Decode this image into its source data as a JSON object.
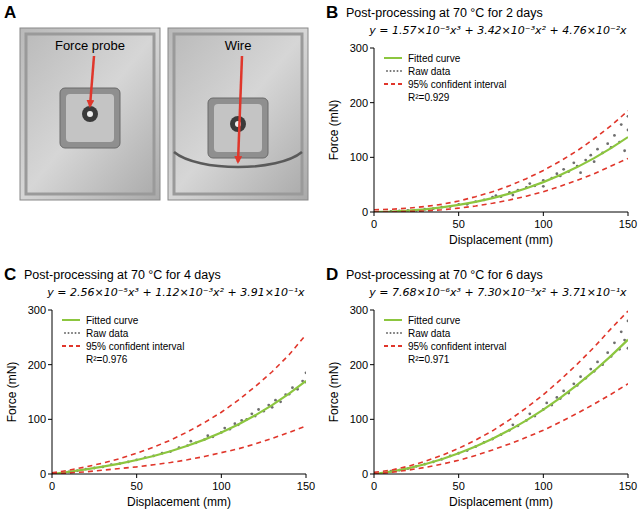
{
  "photo_panel": {
    "letter": "A",
    "images": [
      {
        "label": "Force probe"
      },
      {
        "label": "Wire"
      }
    ]
  },
  "chart_data": [
    {
      "type": "line",
      "letter": "B",
      "title": "Post-processing at 70 °C for 2 days",
      "subtitle": "y = 1.57×10⁻⁵x³ + 3.42×10⁻³x² + 4.76×10⁻²x",
      "annotation": "R²=0.929",
      "x_label": "Displacement (mm)",
      "y_label": "Force (mN)",
      "xlim": [
        0,
        150
      ],
      "xticks": [
        0,
        50,
        100,
        150
      ],
      "ylim": [
        0,
        300
      ],
      "yticks": [
        0,
        100,
        200,
        300
      ],
      "grid": false,
      "legend": "upper left",
      "series": [
        {
          "name": "Fitted curve",
          "type": "line",
          "color": "#8cc63f",
          "line_style": "solid",
          "x": [
            0,
            10,
            20,
            30,
            40,
            50,
            60,
            70,
            80,
            90,
            100,
            110,
            120,
            130,
            140,
            150
          ],
          "values": [
            0,
            0.8,
            2.5,
            4.9,
            8.4,
            12.9,
            18.6,
            25.5,
            33.7,
            43.4,
            54.7,
            67.5,
            82.1,
            98.5,
            116.8,
            137.1
          ]
        },
        {
          "name": "Raw data",
          "type": "scatter",
          "color": "#6e6e6e",
          "marker": "dot",
          "x": [
            10,
            15,
            20,
            25,
            30,
            35,
            40,
            45,
            50,
            55,
            60,
            65,
            70,
            72,
            75,
            80,
            82,
            85,
            90,
            92,
            95,
            100,
            100,
            105,
            108,
            110,
            112,
            115,
            118,
            120,
            122,
            125,
            128,
            130,
            132,
            135,
            138,
            140,
            142,
            145,
            146,
            148,
            150,
            150
          ],
          "values": [
            1,
            2,
            3,
            3,
            5,
            6,
            9,
            10,
            14,
            14,
            19,
            22,
            27,
            30,
            28,
            36,
            31,
            40,
            45,
            52,
            48,
            58,
            47,
            62,
            70,
            66,
            78,
            74,
            90,
            84,
            72,
            95,
            104,
            92,
            115,
            108,
            125,
            118,
            140,
            128,
            160,
            112,
            150,
            175
          ]
        },
        {
          "name": "95% confident interval",
          "type": "line",
          "color": "#e0362b",
          "line_style": "dashed",
          "x": [
            0,
            10,
            20,
            30,
            40,
            50,
            60,
            70,
            80,
            90,
            100,
            110,
            120,
            130,
            140,
            150
          ],
          "values": [
            4,
            5,
            7,
            10,
            14,
            20,
            28,
            37,
            48,
            61,
            76,
            93,
            112,
            134,
            158,
            185
          ],
          "lower": [
            0,
            0,
            1,
            2,
            4,
            7,
            11,
            16,
            22,
            29,
            37,
            47,
            58,
            70,
            84,
            98
          ]
        }
      ]
    },
    {
      "type": "line",
      "letter": "C",
      "title": "Post-processing at 70 °C for 4 days",
      "subtitle": "y = 2.56×10⁻⁵x³ + 1.12×10⁻³x² + 3.91×10⁻¹x",
      "annotation": "R²=0.976",
      "x_label": "Displacement (mm)",
      "y_label": "Force (mN)",
      "xlim": [
        0,
        150
      ],
      "xticks": [
        0,
        50,
        100,
        150
      ],
      "ylim": [
        0,
        300
      ],
      "yticks": [
        0,
        100,
        200,
        300
      ],
      "grid": false,
      "legend": "upper left",
      "series": [
        {
          "name": "Fitted curve",
          "type": "line",
          "color": "#8cc63f",
          "line_style": "solid",
          "x": [
            0,
            10,
            20,
            30,
            40,
            50,
            60,
            70,
            80,
            90,
            100,
            110,
            120,
            130,
            140,
            150
          ],
          "values": [
            0,
            4.1,
            8.5,
            13.4,
            19.1,
            25.6,
            33.0,
            41.6,
            51.6,
            62.9,
            75.9,
            90.6,
            107.3,
            126.0,
            146.9,
            170.3
          ]
        },
        {
          "name": "Raw data",
          "type": "scatter",
          "color": "#6e6e6e",
          "marker": "dot",
          "x": [
            10,
            15,
            20,
            25,
            30,
            35,
            40,
            45,
            50,
            55,
            60,
            65,
            70,
            75,
            80,
            82,
            85,
            90,
            92,
            95,
            100,
            102,
            105,
            108,
            110,
            112,
            115,
            118,
            120,
            122,
            125,
            128,
            130,
            132,
            135,
            138,
            140,
            142,
            145,
            148,
            150,
            150
          ],
          "values": [
            4,
            6,
            9,
            11,
            13,
            17,
            19,
            22,
            26,
            30,
            33,
            38,
            41,
            48,
            52,
            60,
            57,
            63,
            70,
            68,
            76,
            84,
            82,
            92,
            90,
            98,
            100,
            110,
            106,
            118,
            115,
            126,
            122,
            135,
            132,
            145,
            146,
            158,
            155,
            170,
            168,
            185
          ]
        },
        {
          "name": "95% confident interval",
          "type": "line",
          "color": "#e0362b",
          "line_style": "dashed",
          "x": [
            0,
            10,
            20,
            30,
            40,
            50,
            60,
            70,
            80,
            90,
            100,
            110,
            120,
            130,
            140,
            150
          ],
          "values": [
            2,
            7,
            13,
            20,
            28,
            38,
            49,
            62,
            77,
            94,
            113,
            135,
            160,
            187,
            218,
            255
          ],
          "lower": [
            0,
            2,
            4,
            7,
            10,
            13,
            17,
            21,
            26,
            32,
            39,
            46,
            55,
            65,
            76,
            88
          ]
        }
      ]
    },
    {
      "type": "line",
      "letter": "D",
      "title": "Post-processing at 70 °C for 6 days",
      "subtitle": "y = 7.68×10⁻⁶x³ + 7.30×10⁻³x² + 3.71×10⁻¹x",
      "annotation": "R²=0.971",
      "x_label": "Displacement (mm)",
      "y_label": "Force (mN)",
      "xlim": [
        0,
        150
      ],
      "xticks": [
        0,
        50,
        100,
        150
      ],
      "ylim": [
        0,
        300
      ],
      "yticks": [
        0,
        100,
        200,
        300
      ],
      "grid": false,
      "legend": "upper left",
      "series": [
        {
          "name": "Fitted curve",
          "type": "line",
          "color": "#8cc63f",
          "line_style": "solid",
          "x": [
            0,
            10,
            20,
            30,
            40,
            50,
            60,
            70,
            80,
            90,
            100,
            110,
            120,
            130,
            140,
            150
          ],
          "values": [
            0,
            4.5,
            10.4,
            17.9,
            27.0,
            37.8,
            50.2,
            64.4,
            80.3,
            98.1,
            117.8,
            139.4,
            162.9,
            188.5,
            216.1,
            245.8
          ]
        },
        {
          "name": "Raw data",
          "type": "scatter",
          "color": "#6e6e6e",
          "marker": "dot",
          "x": [
            10,
            15,
            20,
            25,
            30,
            35,
            40,
            45,
            50,
            55,
            60,
            65,
            70,
            75,
            80,
            82,
            85,
            90,
            92,
            95,
            100,
            102,
            105,
            108,
            110,
            112,
            115,
            118,
            120,
            122,
            125,
            128,
            130,
            132,
            135,
            138,
            140,
            142,
            145,
            146,
            148,
            150,
            150
          ],
          "values": [
            5,
            7,
            10,
            14,
            18,
            22,
            27,
            33,
            38,
            43,
            50,
            58,
            64,
            72,
            80,
            90,
            88,
            98,
            110,
            106,
            118,
            130,
            126,
            140,
            138,
            152,
            148,
            165,
            162,
            178,
            175,
            192,
            188,
            205,
            200,
            222,
            215,
            240,
            228,
            260,
            245,
            230,
            280
          ]
        },
        {
          "name": "95% confident interval",
          "type": "line",
          "color": "#e0362b",
          "line_style": "dashed",
          "x": [
            0,
            10,
            20,
            30,
            40,
            50,
            60,
            70,
            80,
            90,
            100,
            110,
            120,
            130,
            140,
            150
          ],
          "values": [
            3,
            7,
            14,
            23,
            34,
            47,
            62,
            79,
            99,
            121,
            145,
            172,
            201,
            232,
            266,
            298
          ],
          "lower": [
            0,
            3,
            7,
            12,
            18,
            25,
            34,
            44,
            55,
            67,
            80,
            95,
            111,
            128,
            146,
            165
          ]
        }
      ]
    }
  ]
}
